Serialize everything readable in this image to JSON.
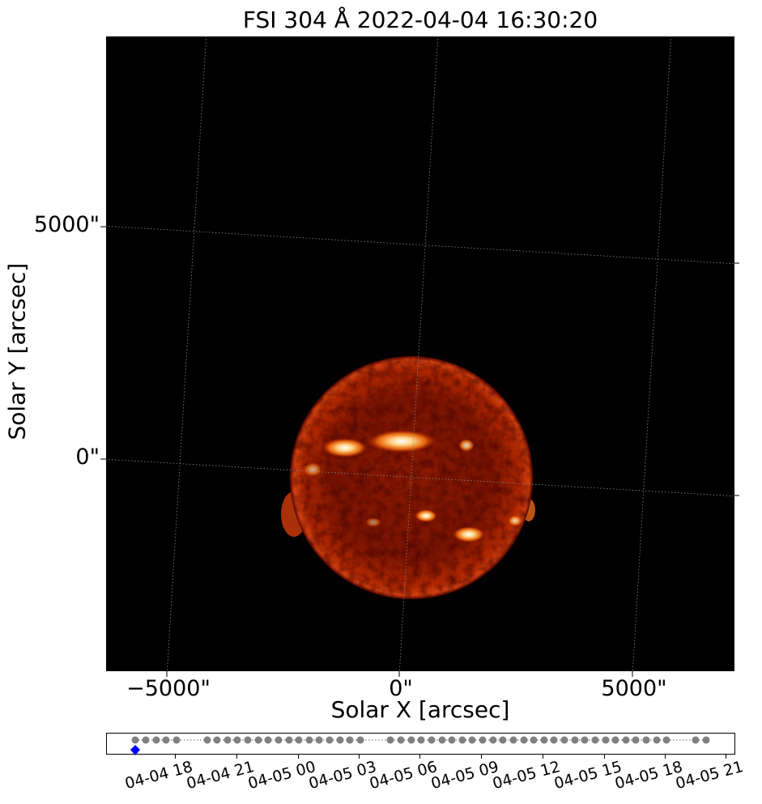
{
  "figure": {
    "title": "FSI 304 Å 2022-04-04 16:30:20",
    "xlabel": "Solar X [arcsec]",
    "ylabel": "Solar Y [arcsec]",
    "x_ticks": [
      "−5000\"",
      "0\"",
      "5000\""
    ],
    "y_ticks": [
      "5000\"",
      "0\""
    ]
  },
  "timeline": {
    "tick_labels": [
      "04-04 18",
      "04-04 21",
      "04-05 00",
      "04-05 03",
      "04-05 06",
      "04-05 09",
      "04-05 12",
      "04-05 15",
      "04-05 18",
      "04-05 21"
    ],
    "current_index": 0,
    "marker_color": "#0000ff",
    "dot_color": "#808080"
  },
  "colors": {
    "sun_core": "#ffffff",
    "sun_bright": "#ff7a10",
    "sun_mid": "#c02000",
    "sun_dark": "#5a0800",
    "background": "#000000"
  }
}
